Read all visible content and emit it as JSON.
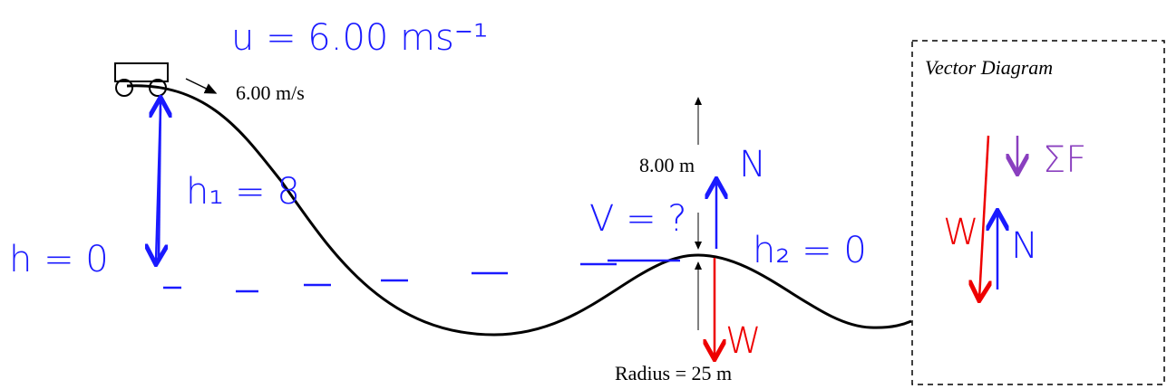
{
  "labels": {
    "speed": "6.00 m/s",
    "height": "8.00 m",
    "radius": "Radius = 25 m",
    "vector_title": "Vector Diagram"
  },
  "handwriting": {
    "u": "u = 6.00 ms⁻¹",
    "h1": "h₁ = 8",
    "h0": "h = 0",
    "v": "V = ?",
    "h2": "h₂ = 0",
    "n_track": "N",
    "w_track": "W",
    "sum_f": "ΣF",
    "n_vector": "N",
    "w_vector": "W"
  }
}
